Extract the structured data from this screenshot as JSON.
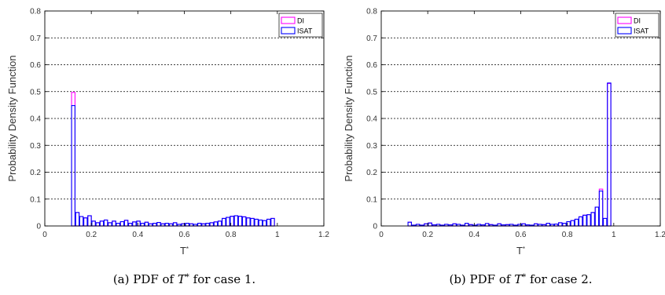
{
  "chart_data": [
    {
      "type": "bar",
      "ylabel": "Probability Density Function",
      "xlabel": "T*",
      "caption": "(a)  PDF of T* for case 1.",
      "xlim": [
        0,
        1.2
      ],
      "ylim": [
        0,
        0.8
      ],
      "xticks": [
        "0",
        "0.2",
        "0.4",
        "0.6",
        "0.8",
        "1",
        "1.2"
      ],
      "yticks": [
        "0",
        "0.1",
        "0.2",
        "0.3",
        "0.4",
        "0.5",
        "0.6",
        "0.7",
        "0.8"
      ],
      "grid": "horizontal-dotted",
      "legend": {
        "placement": "top-right",
        "entries": [
          "DI",
          "ISAT"
        ]
      },
      "bin_width": 0.0175,
      "x": [
        0.1225,
        0.14,
        0.1575,
        0.175,
        0.1925,
        0.21,
        0.2275,
        0.245,
        0.2625,
        0.28,
        0.2975,
        0.315,
        0.3325,
        0.35,
        0.3675,
        0.385,
        0.4025,
        0.42,
        0.4375,
        0.455,
        0.4725,
        0.49,
        0.5075,
        0.525,
        0.5425,
        0.56,
        0.5775,
        0.595,
        0.6125,
        0.63,
        0.6475,
        0.665,
        0.6825,
        0.7,
        0.7175,
        0.735,
        0.7525,
        0.77,
        0.7875,
        0.805,
        0.8225,
        0.84,
        0.8575,
        0.875,
        0.8925,
        0.91,
        0.9275,
        0.945,
        0.9625,
        0.98
      ],
      "series": [
        {
          "name": "DI",
          "values": [
            0.497,
            0.05,
            0.035,
            0.03,
            0.038,
            0.018,
            0.012,
            0.018,
            0.022,
            0.012,
            0.018,
            0.01,
            0.016,
            0.021,
            0.01,
            0.015,
            0.018,
            0.01,
            0.014,
            0.008,
            0.01,
            0.013,
            0.008,
            0.01,
            0.008,
            0.012,
            0.006,
            0.008,
            0.01,
            0.008,
            0.006,
            0.01,
            0.008,
            0.01,
            0.012,
            0.015,
            0.018,
            0.028,
            0.032,
            0.036,
            0.038,
            0.036,
            0.034,
            0.03,
            0.028,
            0.025,
            0.022,
            0.02,
            0.025,
            0.028
          ]
        },
        {
          "name": "ISAT",
          "values": [
            0.448,
            0.05,
            0.035,
            0.03,
            0.038,
            0.018,
            0.012,
            0.018,
            0.022,
            0.012,
            0.018,
            0.01,
            0.016,
            0.021,
            0.01,
            0.015,
            0.018,
            0.01,
            0.014,
            0.008,
            0.01,
            0.013,
            0.008,
            0.01,
            0.008,
            0.012,
            0.006,
            0.008,
            0.01,
            0.008,
            0.006,
            0.01,
            0.008,
            0.01,
            0.012,
            0.015,
            0.018,
            0.028,
            0.032,
            0.036,
            0.038,
            0.036,
            0.034,
            0.03,
            0.028,
            0.025,
            0.022,
            0.02,
            0.025,
            0.028
          ]
        }
      ]
    },
    {
      "type": "bar",
      "ylabel": "Probability Density Function",
      "xlabel": "T*",
      "caption": "(b)  PDF of T* for case 2.",
      "xlim": [
        0,
        1.2
      ],
      "ylim": [
        0,
        0.8
      ],
      "xticks": [
        "0",
        "0.2",
        "0.4",
        "0.6",
        "0.8",
        "1",
        "1.2"
      ],
      "yticks": [
        "0",
        "0.1",
        "0.2",
        "0.3",
        "0.4",
        "0.5",
        "0.6",
        "0.7",
        "0.8"
      ],
      "grid": "horizontal-dotted",
      "legend": {
        "placement": "top-right",
        "entries": [
          "DI",
          "ISAT"
        ]
      },
      "bin_width": 0.0175,
      "x": [
        0.1225,
        0.14,
        0.1575,
        0.175,
        0.1925,
        0.21,
        0.2275,
        0.245,
        0.2625,
        0.28,
        0.2975,
        0.315,
        0.3325,
        0.35,
        0.3675,
        0.385,
        0.4025,
        0.42,
        0.4375,
        0.455,
        0.4725,
        0.49,
        0.5075,
        0.525,
        0.5425,
        0.56,
        0.5775,
        0.595,
        0.6125,
        0.63,
        0.6475,
        0.665,
        0.6825,
        0.7,
        0.7175,
        0.735,
        0.7525,
        0.77,
        0.7875,
        0.805,
        0.8225,
        0.84,
        0.8575,
        0.875,
        0.8925,
        0.91,
        0.9275,
        0.945,
        0.9625,
        0.98,
        0.9975
      ],
      "series": [
        {
          "name": "DI",
          "values": [
            0.014,
            0.003,
            0.006,
            0.003,
            0.008,
            0.011,
            0.004,
            0.006,
            0.003,
            0.006,
            0.004,
            0.008,
            0.006,
            0.003,
            0.01,
            0.005,
            0.003,
            0.006,
            0.004,
            0.009,
            0.005,
            0.003,
            0.008,
            0.004,
            0.005,
            0.006,
            0.003,
            0.006,
            0.008,
            0.004,
            0.003,
            0.008,
            0.006,
            0.005,
            0.01,
            0.006,
            0.007,
            0.012,
            0.01,
            0.016,
            0.02,
            0.025,
            0.034,
            0.04,
            0.042,
            0.05,
            0.07,
            0.137,
            0.028,
            0.53,
            0.0
          ]
        },
        {
          "name": "ISAT",
          "values": [
            0.014,
            0.003,
            0.006,
            0.003,
            0.008,
            0.011,
            0.004,
            0.006,
            0.003,
            0.006,
            0.004,
            0.008,
            0.006,
            0.003,
            0.01,
            0.005,
            0.003,
            0.006,
            0.004,
            0.009,
            0.005,
            0.003,
            0.008,
            0.004,
            0.005,
            0.006,
            0.003,
            0.006,
            0.008,
            0.004,
            0.003,
            0.008,
            0.006,
            0.005,
            0.01,
            0.006,
            0.007,
            0.012,
            0.01,
            0.016,
            0.02,
            0.025,
            0.034,
            0.04,
            0.042,
            0.05,
            0.07,
            0.13,
            0.028,
            0.532,
            0.0
          ]
        }
      ]
    }
  ],
  "colors": {
    "DI": "#ff00ff",
    "ISAT": "#0000ff",
    "grid": "#000000",
    "axis": "#000000"
  }
}
